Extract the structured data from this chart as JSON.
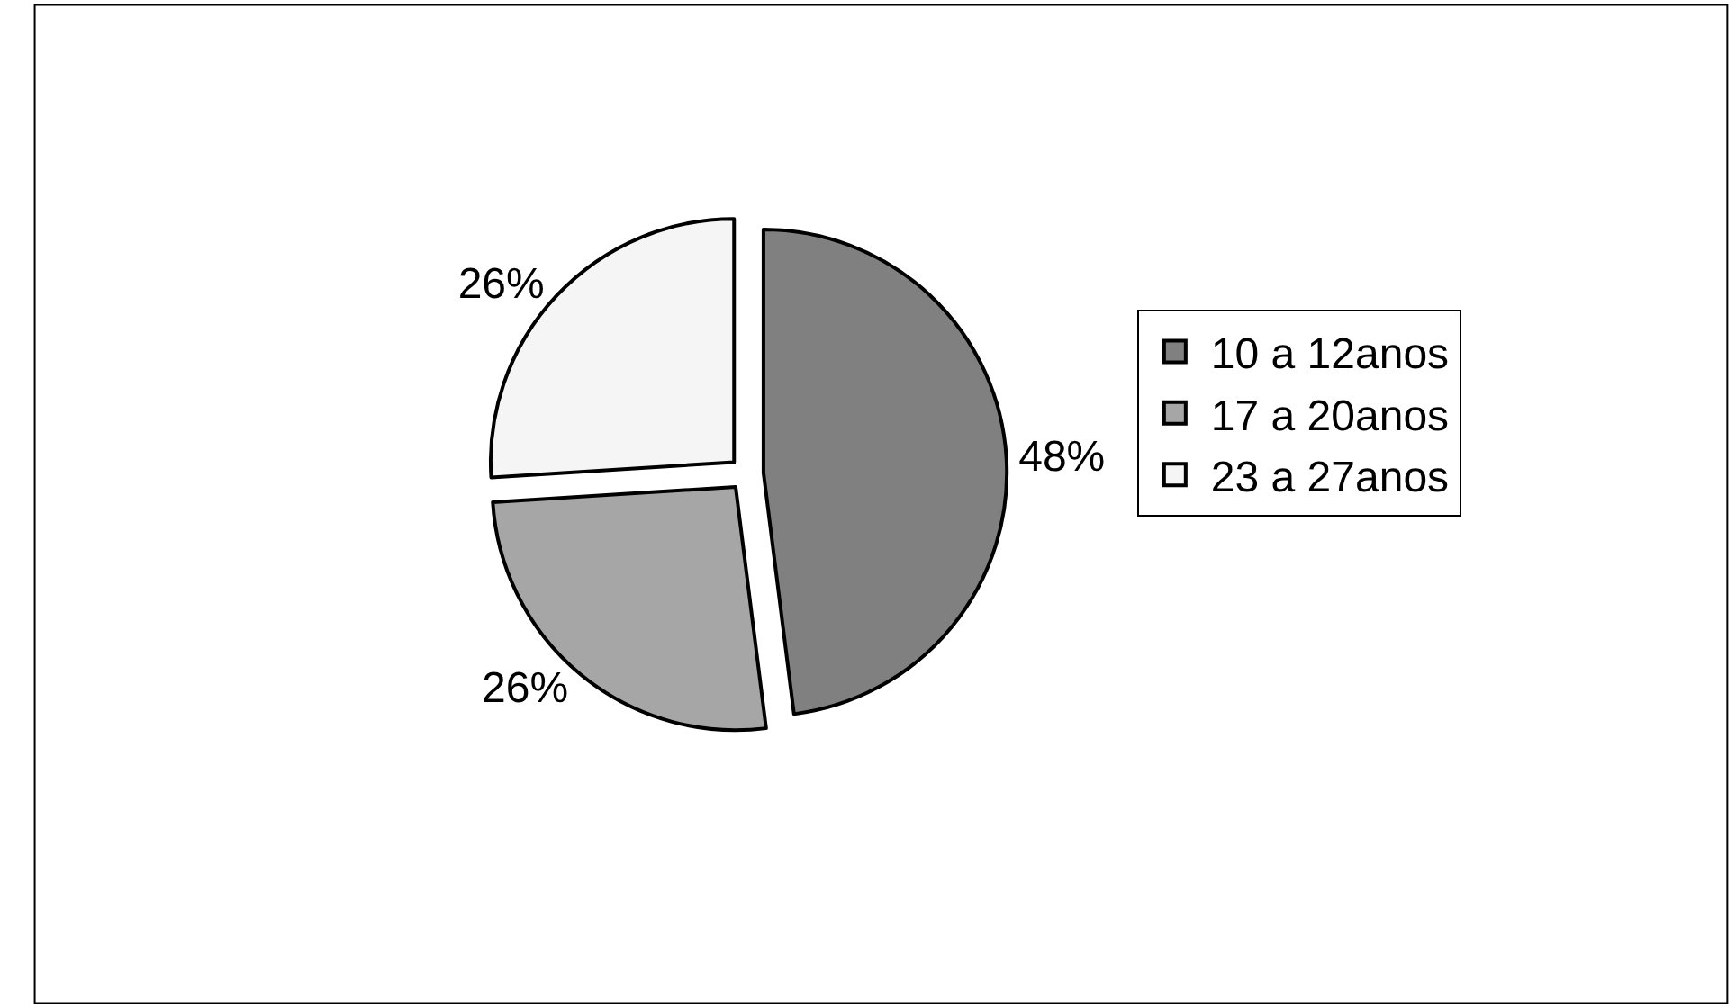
{
  "chart_data": {
    "type": "pie",
    "categories": [
      "10 a 12anos",
      "17 a 20anos",
      "23 a 27anos"
    ],
    "values": [
      48,
      26,
      26
    ],
    "colors": [
      "#808080",
      "#a6a6a6",
      "#f5f5f5"
    ],
    "value_labels": [
      "48%",
      "26%",
      "26%"
    ],
    "legend": "right"
  }
}
